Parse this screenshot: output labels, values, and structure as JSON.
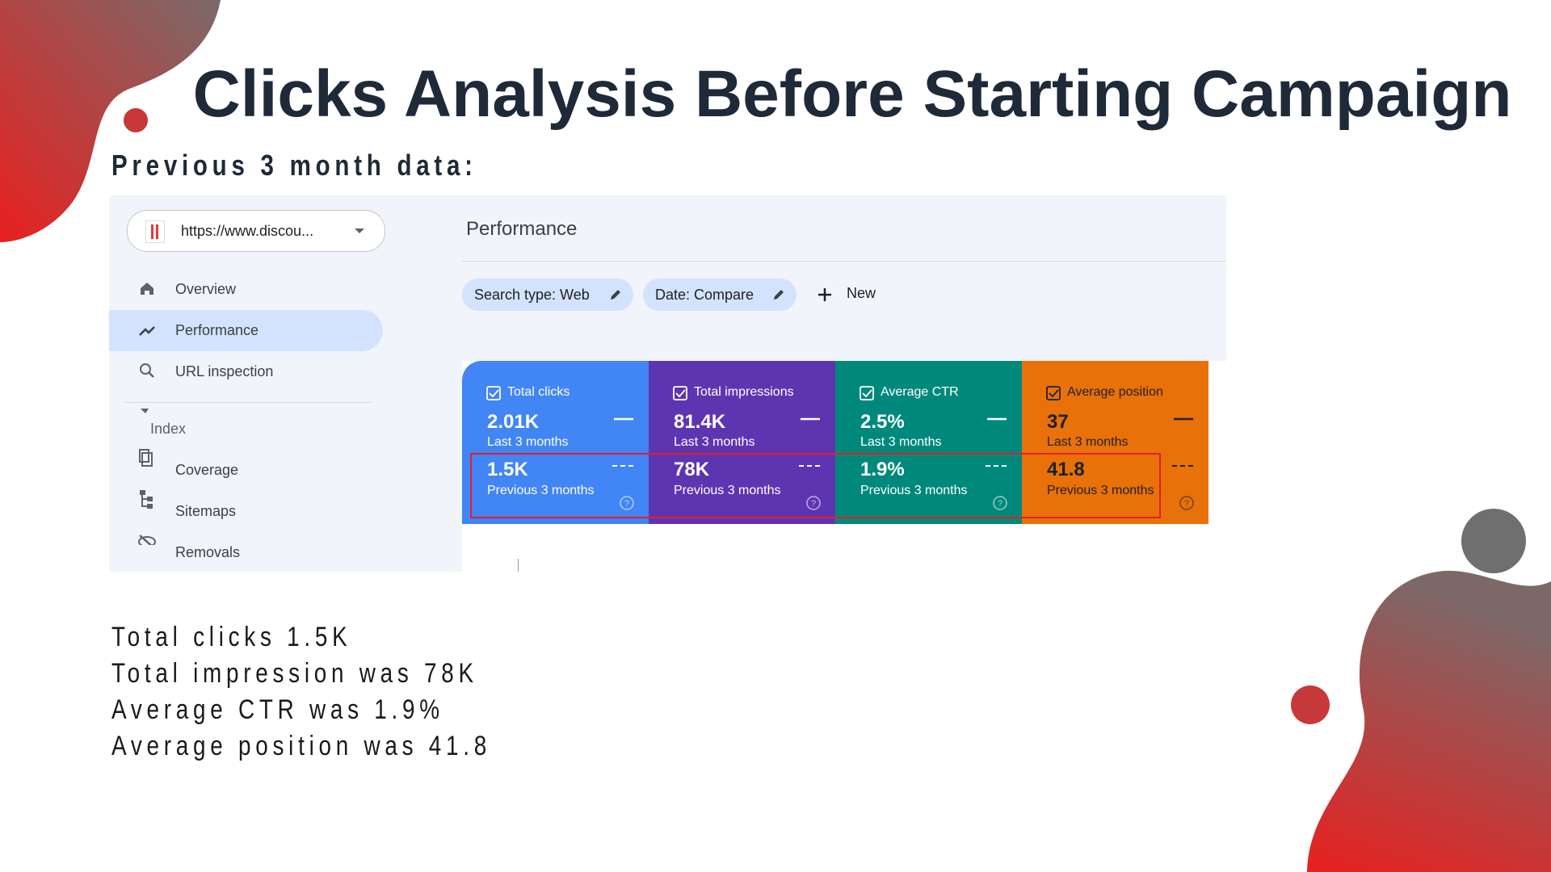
{
  "slide": {
    "title": "Clicks Analysis Before Starting Campaign",
    "subtitle": "Previous 3 month data:",
    "notes": [
      "Total clicks 1.5K",
      "Total impression was 78K",
      "Average CTR was 1.9%",
      "Average position was 41.8"
    ]
  },
  "screenshot": {
    "url": "https://www.discou...",
    "nav": [
      "Overview",
      "Performance",
      "URL inspection"
    ],
    "section": "Index",
    "index_items": [
      "Coverage",
      "Sitemaps",
      "Removals"
    ],
    "header": "Performance",
    "filters": [
      "Search type: Web",
      "Date: Compare"
    ],
    "new_button": "New",
    "metrics": [
      {
        "label": "Total clicks",
        "value": "2.01K",
        "period": "Last 3 months",
        "previous_value": "1.5K",
        "previous_period": "Previous 3 months"
      },
      {
        "label": "Total impressions",
        "value": "81.4K",
        "period": "Last 3 months",
        "previous_value": "78K",
        "previous_period": "Previous 3 months"
      },
      {
        "label": "Average CTR",
        "value": "2.5%",
        "period": "Last 3 months",
        "previous_value": "1.9%",
        "previous_period": "Previous 3 months"
      },
      {
        "label": "Average position",
        "value": "37",
        "period": "Last 3 months",
        "previous_value": "41.8",
        "previous_period": "Previous 3 months"
      }
    ]
  }
}
